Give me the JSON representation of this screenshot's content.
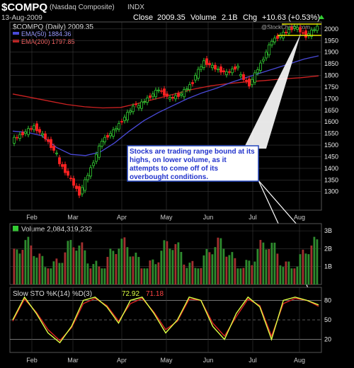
{
  "header": {
    "ticker": "$COMPQ",
    "name": "(Nasdaq Composite)",
    "exchange": "INDX",
    "date": "13-Aug-2009",
    "close_label": "Close",
    "close_value": "2009.35",
    "volume_label": "Volume",
    "volume_value": "2.1B",
    "chg_label": "Chg",
    "chg_value": "+10.63 (+0.53%)",
    "watermark": "@StockCharts.com"
  },
  "price_panel": {
    "legend_title": "$COMPQ (Daily) 2009.35",
    "ema50_legend": "EMA(50) 1884.36",
    "ema200_legend": "EMA(200) 1797.85",
    "annotation": "Stocks are trading range bound at its highs, on lower volume, as it attempts to come off of its overbought conditions."
  },
  "volume_panel": {
    "legend": "Volume 2,084,319,232"
  },
  "sto_panel": {
    "legend_prefix": "Slow STO %K(14) %D(3)",
    "k_value": "72.92",
    "d_value": "71.18"
  },
  "colors": {
    "background": "#000000",
    "up": "#33cc33",
    "down": "#ff2222",
    "ema50": "#4a4ad8",
    "ema200": "#cc2222",
    "grid": "#3a3a3a",
    "trendline": "#eeee00",
    "sto_k": "#ddff44",
    "sto_d": "#dd2222",
    "annotation_border": "#2244bb",
    "annotation_text": "#2233cc"
  },
  "chart_data": {
    "type": "candlestick",
    "x_axis_labels": [
      "Feb",
      "Mar",
      "Apr",
      "May",
      "Jun",
      "Jul",
      "Aug"
    ],
    "price": {
      "ylim": [
        1220,
        2030
      ],
      "ticks": [
        2000,
        1950,
        1900,
        1850,
        1800,
        1750,
        1700,
        1650,
        1600,
        1550,
        1500,
        1450,
        1400,
        1350,
        1300
      ],
      "closes_weekly": [
        {
          "x": "Feb",
          "open": 1520,
          "close": 1550
        },
        {
          "x": "Feb",
          "open": 1550,
          "close": 1580
        },
        {
          "x": "Feb",
          "open": 1580,
          "close": 1530
        },
        {
          "x": "Feb",
          "open": 1530,
          "close": 1460
        },
        {
          "x": "Mar",
          "open": 1440,
          "close": 1370
        },
        {
          "x": "Mar",
          "open": 1370,
          "close": 1290
        },
        {
          "x": "Mar",
          "open": 1290,
          "close": 1400
        },
        {
          "x": "Mar",
          "open": 1400,
          "close": 1520
        },
        {
          "x": "Apr",
          "open": 1520,
          "close": 1560
        },
        {
          "x": "Apr",
          "open": 1560,
          "close": 1620
        },
        {
          "x": "Apr",
          "open": 1620,
          "close": 1680
        },
        {
          "x": "Apr",
          "open": 1660,
          "close": 1700
        },
        {
          "x": "May",
          "open": 1700,
          "close": 1740
        },
        {
          "x": "May",
          "open": 1740,
          "close": 1700
        },
        {
          "x": "May",
          "open": 1700,
          "close": 1720
        },
        {
          "x": "May",
          "open": 1720,
          "close": 1770
        },
        {
          "x": "Jun",
          "open": 1780,
          "close": 1860
        },
        {
          "x": "Jun",
          "open": 1860,
          "close": 1830
        },
        {
          "x": "Jun",
          "open": 1830,
          "close": 1810
        },
        {
          "x": "Jun",
          "open": 1810,
          "close": 1840
        },
        {
          "x": "Jul",
          "open": 1810,
          "close": 1760
        },
        {
          "x": "Jul",
          "open": 1760,
          "close": 1850
        },
        {
          "x": "Jul",
          "open": 1850,
          "close": 1950
        },
        {
          "x": "Jul",
          "open": 1950,
          "close": 1980
        },
        {
          "x": "Aug",
          "open": 1980,
          "close": 2010
        },
        {
          "x": "Aug",
          "open": 2010,
          "close": 1970
        },
        {
          "x": "Aug",
          "open": 1970,
          "close": 2009
        }
      ],
      "ema50": [
        1560,
        1555,
        1540,
        1490,
        1460,
        1455,
        1470,
        1510,
        1560,
        1605,
        1640,
        1670,
        1700,
        1725,
        1745,
        1770,
        1790,
        1810,
        1830,
        1850,
        1870,
        1884
      ],
      "ema200": [
        1720,
        1705,
        1690,
        1675,
        1665,
        1660,
        1662,
        1680,
        1700,
        1720,
        1740,
        1755,
        1765,
        1772,
        1778,
        1785,
        1790,
        1798
      ]
    },
    "volume": {
      "ylim": [
        0,
        3.4
      ],
      "ticks": [
        3,
        2,
        1
      ],
      "tick_labels": [
        "3B",
        "2B",
        "1B"
      ],
      "unit": "B"
    },
    "stochastic": {
      "ylim": [
        0,
        100
      ],
      "ticks": [
        80,
        50,
        20
      ],
      "k": [
        50,
        85,
        60,
        30,
        15,
        40,
        80,
        85,
        70,
        45,
        80,
        85,
        60,
        30,
        50,
        85,
        80,
        40,
        20,
        60,
        85,
        70,
        20,
        80,
        85,
        80,
        73
      ],
      "d": [
        48,
        82,
        62,
        35,
        18,
        38,
        75,
        83,
        72,
        48,
        75,
        83,
        62,
        35,
        48,
        82,
        80,
        45,
        25,
        55,
        82,
        72,
        25,
        75,
        83,
        80,
        71
      ]
    }
  }
}
